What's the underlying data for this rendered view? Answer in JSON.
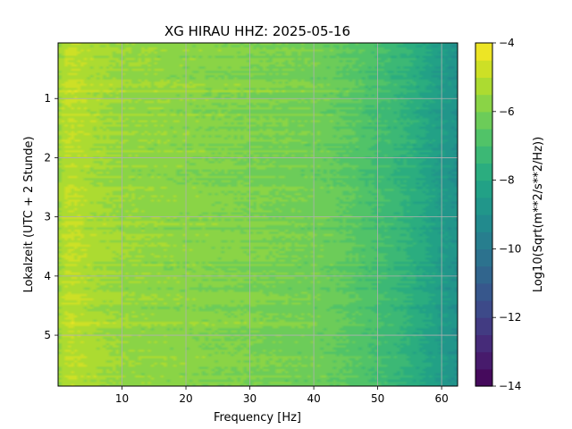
{
  "chart_data": {
    "type": "heatmap",
    "title": "XG HIRAU  HHZ: 2025-05-16",
    "xlabel": "Frequency [Hz]",
    "ylabel": "Lokalzeit (UTC + 2 Stunde)",
    "colorbar_label": "Log10(Sqrt(m**2/s**2/Hz))",
    "xlim": [
      0,
      62.5
    ],
    "ylim": [
      0.06,
      5.86
    ],
    "y_inverted": true,
    "grid": true,
    "colormap": "viridis",
    "clim": [
      -14,
      -4
    ],
    "colorbar_levels": 20,
    "x_ticks": [
      10,
      20,
      30,
      40,
      50,
      60
    ],
    "y_ticks": [
      1,
      2,
      3,
      4,
      5
    ],
    "colorbar_ticks": [
      -4,
      -6,
      -8,
      -10,
      -12,
      -14
    ],
    "spectrum_profile": {
      "frequency": [
        0,
        1,
        2,
        3,
        5,
        10,
        20,
        30,
        40,
        45,
        50,
        55,
        60,
        62.5
      ],
      "value": [
        -5.6,
        -5.1,
        -5.0,
        -5.1,
        -5.3,
        -5.6,
        -5.8,
        -6.0,
        -6.2,
        -6.5,
        -7.0,
        -7.6,
        -8.5,
        -9.0
      ]
    },
    "bright_bands": [
      {
        "time": 0.79,
        "f_max": 47,
        "boost": 0.7
      },
      {
        "time": 0.88,
        "f_max": 47,
        "boost": 0.5
      },
      {
        "time": 1.28,
        "f_max": 47,
        "boost": 0.55
      },
      {
        "time": 1.9,
        "f_max": 45,
        "boost": 0.3
      },
      {
        "time": 2.5,
        "f_max": 48,
        "boost": 0.45
      },
      {
        "time": 2.75,
        "f_max": 44,
        "boost": 0.35
      },
      {
        "time": 3.1,
        "f_max": 40,
        "boost": 0.35
      },
      {
        "time": 3.3,
        "f_max": 45,
        "boost": 0.4
      },
      {
        "time": 3.55,
        "f_max": 47,
        "boost": 0.45
      },
      {
        "time": 4.8,
        "f_max": 40,
        "boost": 0.5
      },
      {
        "time": 5.28,
        "f_max": 35,
        "boost": 0.4
      },
      {
        "time": 5.75,
        "f_max": 33,
        "boost": 0.3
      }
    ]
  }
}
